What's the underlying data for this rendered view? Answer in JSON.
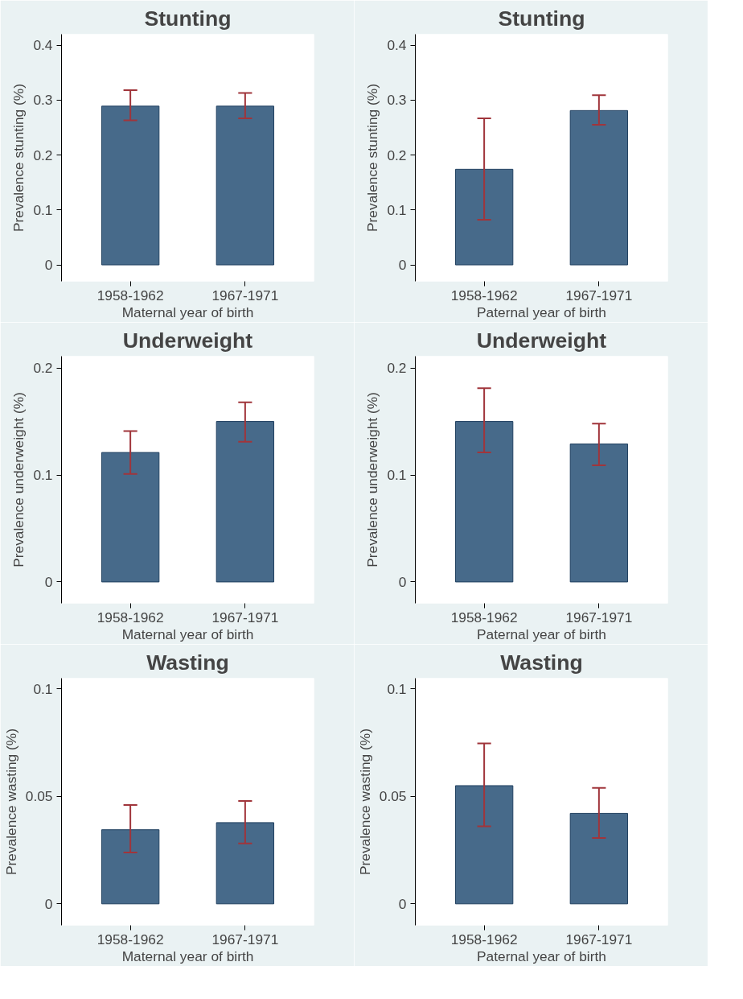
{
  "chart_data": [
    {
      "type": "bar",
      "title": "Stunting",
      "xlabel": "Maternal year of birth",
      "ylabel": "Prevalence stunting (%)",
      "categories": [
        "1958-1962",
        "1967-1971"
      ],
      "values": [
        0.289,
        0.289
      ],
      "errors": [
        [
          0.263,
          0.318
        ],
        [
          0.267,
          0.313
        ]
      ],
      "color": "#476a8a",
      "ylim": [
        -0.03,
        0.42
      ],
      "yticks": [
        0,
        0.1,
        0.2,
        0.3,
        0.4
      ],
      "grid": false
    },
    {
      "type": "bar",
      "title": "Stunting",
      "xlabel": "Paternal year of birth",
      "ylabel": "Prevalence stunting (%)",
      "categories": [
        "1958-1962",
        "1967-1971"
      ],
      "values": [
        0.174,
        0.281
      ],
      "errors": [
        [
          0.082,
          0.267
        ],
        [
          0.255,
          0.309
        ]
      ],
      "color": "#476a8a",
      "ylim": [
        -0.03,
        0.42
      ],
      "yticks": [
        0,
        0.1,
        0.2,
        0.3,
        0.4
      ],
      "grid": false
    },
    {
      "type": "bar",
      "title": "Underweight",
      "xlabel": "Maternal year of birth",
      "ylabel": "Prevalence underweight (%)",
      "categories": [
        "1958-1962",
        "1967-1971"
      ],
      "values": [
        0.121,
        0.15
      ],
      "errors": [
        [
          0.101,
          0.141
        ],
        [
          0.131,
          0.168
        ]
      ],
      "color": "#476a8a",
      "ylim": [
        -0.02,
        0.211
      ],
      "yticks": [
        0,
        0.1,
        0.2
      ],
      "grid": false
    },
    {
      "type": "bar",
      "title": "Underweight",
      "xlabel": "Paternal year of birth",
      "ylabel": "Prevalence underweight (%)",
      "categories": [
        "1958-1962",
        "1967-1971"
      ],
      "values": [
        0.15,
        0.129
      ],
      "errors": [
        [
          0.121,
          0.181
        ],
        [
          0.109,
          0.148
        ]
      ],
      "color": "#476a8a",
      "ylim": [
        -0.02,
        0.211
      ],
      "yticks": [
        0,
        0.1,
        0.2
      ],
      "grid": false
    },
    {
      "type": "bar",
      "title": "Wasting",
      "xlabel": "Maternal year of birth",
      "ylabel": "Prevalence wasting (%)",
      "categories": [
        "1958-1962",
        "1967-1971"
      ],
      "values": [
        0.0345,
        0.0378
      ],
      "errors": [
        [
          0.0239,
          0.046
        ],
        [
          0.0281,
          0.0479
        ]
      ],
      "color": "#476a8a",
      "ylim": [
        -0.01,
        0.105
      ],
      "yticks": [
        0,
        0.05,
        0.1
      ],
      "grid": false
    },
    {
      "type": "bar",
      "title": "Wasting",
      "xlabel": "Paternal year of birth",
      "ylabel": "Prevalence wasting (%)",
      "categories": [
        "1958-1962",
        "1967-1971"
      ],
      "values": [
        0.055,
        0.0421
      ],
      "errors": [
        [
          0.0361,
          0.0747
        ],
        [
          0.0306,
          0.054
        ]
      ],
      "color": "#476a8a",
      "ylim": [
        -0.01,
        0.105
      ],
      "yticks": [
        0,
        0.05,
        0.1
      ],
      "grid": false
    }
  ]
}
